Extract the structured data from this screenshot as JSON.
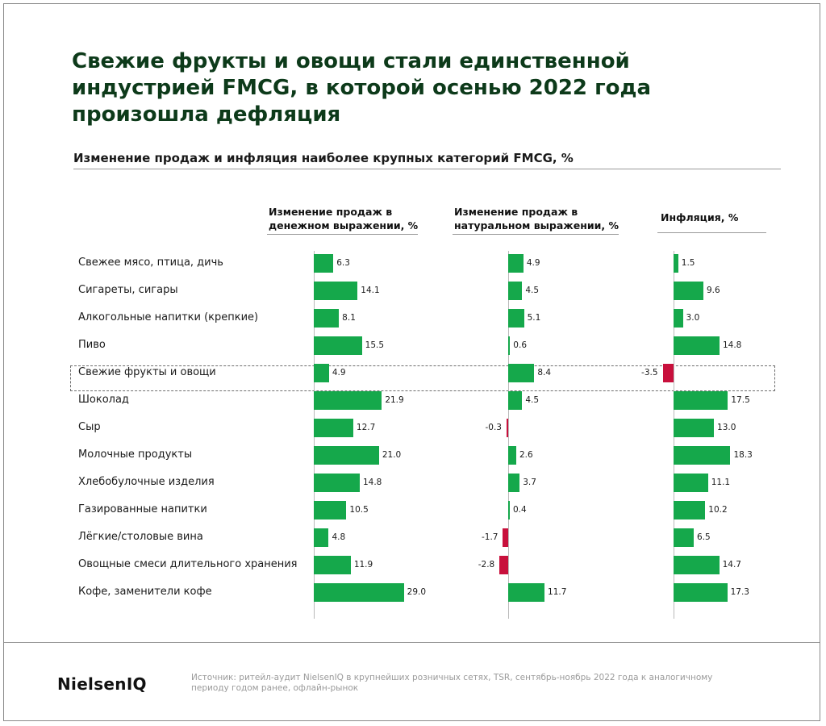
{
  "title": "Свежие фрукты и овощи стали единственной индустрией FMCG, в которой осенью 2022 года произошла дефляция",
  "subtitle": "Изменение продаж и инфляция наиболее крупных категорий FMCG, %",
  "panels": [
    {
      "label": "Изменение продаж в денежном выражении, %"
    },
    {
      "label": "Изменение продаж в натуральном выражении, %"
    },
    {
      "label": "Инфляция, %"
    }
  ],
  "highlight_category": "Свежие фрукты и овощи",
  "logo": "NielsenIQ",
  "source": "Источник: ритейл-аудит NielsenIQ в крупнейших розничных сетях, TSR, сентябрь-ноябрь 2022 года к аналогичному периоду годом ранее, офлайн-рынок",
  "colors": {
    "positive": "#15a84b",
    "negative": "#c8103c",
    "title": "#0d3a1a"
  },
  "chart_data": {
    "type": "bar",
    "orientation": "horizontal",
    "categories": [
      "Свежее мясо, птица, дичь",
      "Сигареты, сигары",
      "Алкогольные напитки (крепкие)",
      "Пиво",
      "Свежие фрукты и овощи",
      "Шоколад",
      "Сыр",
      "Молочные продукты",
      "Хлебобулочные изделия",
      "Газированные напитки",
      "Лёгкие/столовые вина",
      "Овощные смеси длительного хранения",
      "Кофе, заменители кофе"
    ],
    "series": [
      {
        "name": "Изменение продаж в денежном выражении, %",
        "values": [
          6.3,
          14.1,
          8.1,
          15.5,
          4.9,
          21.9,
          12.7,
          21.0,
          14.8,
          10.5,
          4.8,
          11.9,
          29.0
        ]
      },
      {
        "name": "Изменение продаж в натуральном выражении, %",
        "values": [
          4.9,
          4.5,
          5.1,
          0.6,
          8.4,
          4.5,
          -0.3,
          2.6,
          3.7,
          0.4,
          -1.7,
          -2.8,
          11.7
        ]
      },
      {
        "name": "Инфляция, %",
        "values": [
          1.5,
          9.6,
          3.0,
          14.8,
          -3.5,
          17.5,
          13.0,
          18.3,
          11.1,
          10.2,
          6.5,
          14.7,
          17.3
        ]
      }
    ],
    "labels": [
      [
        "6.3",
        "14.1",
        "8.1",
        "15.5",
        "4.9",
        "21.9",
        "12.7",
        "21.0",
        "14.8",
        "10.5",
        "4.8",
        "11.9",
        "29.0"
      ],
      [
        "4.9",
        "4.5",
        "5.1",
        "0.6",
        "8.4",
        "4.5",
        "-0.3",
        "2.6",
        "3.7",
        "0.4",
        "-1.7",
        "-2.8",
        "11.7"
      ],
      [
        "1.5",
        "9.6",
        "3.0",
        "14.8",
        "-3.5",
        "17.5",
        "13.0",
        "18.3",
        "11.1",
        "10.2",
        "6.5",
        "14.7",
        "17.3"
      ]
    ]
  }
}
